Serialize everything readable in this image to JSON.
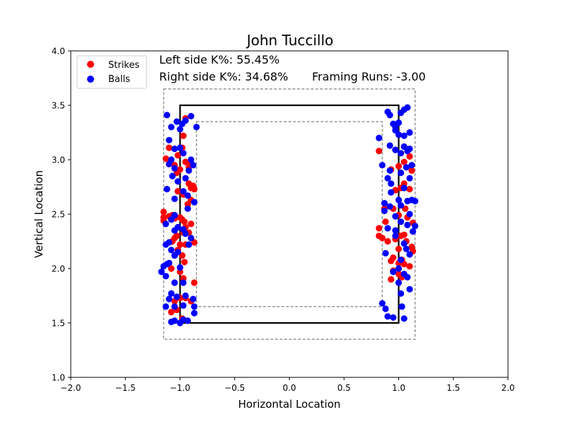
{
  "chart_data": {
    "type": "scatter",
    "title": "John Tuccillo",
    "xlabel": "Horizontal Location",
    "ylabel": "Vertical Location",
    "xlim": [
      -2.0,
      2.0
    ],
    "ylim": [
      1.0,
      4.0
    ],
    "xticks": [
      "−2.0",
      "−1.5",
      "−1.0",
      "−0.5",
      "0.0",
      "0.5",
      "1.0",
      "1.5",
      "2.0"
    ],
    "yticks": [
      "1.0",
      "1.5",
      "2.0",
      "2.5",
      "3.0",
      "3.5",
      "4.0"
    ],
    "xtick_values": [
      -2.0,
      -1.5,
      -1.0,
      -0.5,
      0.0,
      0.5,
      1.0,
      1.5,
      2.0
    ],
    "ytick_values": [
      1.0,
      1.5,
      2.0,
      2.5,
      3.0,
      3.5,
      4.0
    ],
    "annotations": {
      "left_k": "Left side K%: 55.45%",
      "right_k": "Right side K%: 34.68%",
      "framing": "Framing Runs: -3.00"
    },
    "legend": {
      "placement": "top-left",
      "entries": [
        {
          "label": "Strikes",
          "color": "#ff0000"
        },
        {
          "label": "Balls",
          "color": "#0000ff"
        }
      ]
    },
    "zones": {
      "strike_zone": {
        "x": [
          -1.0,
          1.0
        ],
        "y": [
          1.5,
          3.5
        ],
        "color": "#000000",
        "style": "solid"
      },
      "outer_zone": {
        "x": [
          -1.15,
          1.15
        ],
        "y": [
          1.35,
          3.65
        ],
        "color": "#808080",
        "style": "dashed"
      },
      "inner_zone": {
        "x": [
          -0.85,
          0.85
        ],
        "y": [
          1.65,
          3.35
        ],
        "color": "#808080",
        "style": "dashed"
      }
    },
    "grid": false,
    "series": [
      {
        "name": "Strikes",
        "color": "#ff0000",
        "points": [
          [
            -1.15,
            2.52
          ],
          [
            -1.15,
            2.47
          ],
          [
            -1.15,
            2.44
          ],
          [
            -1.1,
            2.48
          ],
          [
            -1.13,
            3.01
          ],
          [
            -1.1,
            3.11
          ],
          [
            -1.05,
            2.95
          ],
          [
            -1.03,
            2.88
          ],
          [
            -1.0,
            2.91
          ],
          [
            -0.98,
            3.11
          ],
          [
            -0.97,
            3.22
          ],
          [
            -0.95,
            3.38
          ],
          [
            -1.02,
            2.71
          ],
          [
            -0.97,
            2.68
          ],
          [
            -0.92,
            2.78
          ],
          [
            -0.9,
            2.74
          ],
          [
            -0.88,
            2.76
          ],
          [
            -0.9,
            2.63
          ],
          [
            -1.07,
            2.49
          ],
          [
            -1.05,
            2.46
          ],
          [
            -1.0,
            2.47
          ],
          [
            -0.98,
            2.45
          ],
          [
            -0.96,
            2.43
          ],
          [
            -0.9,
            2.41
          ],
          [
            -0.95,
            2.38
          ],
          [
            -0.92,
            2.33
          ],
          [
            -0.97,
            2.33
          ],
          [
            -1.03,
            2.3
          ],
          [
            -1.05,
            2.28
          ],
          [
            -1.07,
            2.25
          ],
          [
            -1.0,
            2.22
          ],
          [
            -0.95,
            2.22
          ],
          [
            -0.87,
            2.24
          ],
          [
            -1.02,
            2.17
          ],
          [
            -0.98,
            2.12
          ],
          [
            -0.96,
            2.06
          ],
          [
            -1.08,
            2.0
          ],
          [
            -1.0,
            1.97
          ],
          [
            -0.97,
            1.91
          ],
          [
            -0.87,
            1.87
          ],
          [
            -1.05,
            1.7
          ],
          [
            -1.0,
            1.73
          ],
          [
            -0.95,
            1.73
          ],
          [
            -0.9,
            1.7
          ],
          [
            -1.08,
            1.6
          ],
          [
            -1.03,
            1.62
          ],
          [
            -0.98,
            1.54
          ],
          [
            -0.93,
            1.52
          ],
          [
            -0.92,
            2.93
          ],
          [
            -0.95,
            2.98
          ],
          [
            -0.9,
            2.96
          ],
          [
            -1.02,
            3.04
          ],
          [
            -0.87,
            2.73
          ],
          [
            -0.93,
            2.59
          ],
          [
            0.82,
            3.08
          ],
          [
            0.97,
            3.09
          ],
          [
            1.05,
            3.12
          ],
          [
            1.1,
            3.03
          ],
          [
            1.12,
            2.9
          ],
          [
            1.05,
            2.98
          ],
          [
            1.0,
            2.94
          ],
          [
            0.93,
            2.91
          ],
          [
            0.97,
            2.72
          ],
          [
            1.02,
            2.74
          ],
          [
            1.05,
            2.78
          ],
          [
            1.1,
            2.73
          ],
          [
            0.87,
            2.55
          ],
          [
            0.95,
            2.55
          ],
          [
            1.0,
            2.49
          ],
          [
            1.06,
            2.55
          ],
          [
            1.08,
            2.47
          ],
          [
            1.13,
            2.42
          ],
          [
            0.88,
            2.43
          ],
          [
            0.82,
            2.37
          ],
          [
            0.82,
            2.3
          ],
          [
            0.85,
            2.28
          ],
          [
            0.9,
            2.25
          ],
          [
            0.97,
            2.27
          ],
          [
            1.02,
            2.3
          ],
          [
            1.05,
            2.31
          ],
          [
            1.12,
            2.2
          ],
          [
            1.13,
            2.16
          ],
          [
            0.93,
            2.07
          ],
          [
            1.0,
            2.05
          ],
          [
            1.05,
            2.04
          ],
          [
            1.1,
            2.02
          ],
          [
            0.95,
            1.98
          ],
          [
            1.0,
            1.95
          ],
          [
            1.03,
            1.92
          ],
          [
            0.93,
            1.9
          ],
          [
            1.0,
            2.18
          ],
          [
            1.07,
            2.25
          ],
          [
            0.95,
            2.1
          ],
          [
            1.03,
            2.08
          ]
        ]
      },
      {
        "name": "Balls",
        "color": "#0000ff",
        "points": [
          [
            -1.12,
            3.41
          ],
          [
            -1.08,
            3.3
          ],
          [
            -1.03,
            3.35
          ],
          [
            -1.0,
            3.28
          ],
          [
            -0.98,
            3.33
          ],
          [
            -0.95,
            3.36
          ],
          [
            -0.9,
            3.4
          ],
          [
            -0.85,
            3.3
          ],
          [
            -1.1,
            3.18
          ],
          [
            -1.05,
            3.1
          ],
          [
            -1.0,
            3.11
          ],
          [
            -1.08,
            3.0
          ],
          [
            -1.1,
            2.96
          ],
          [
            -1.05,
            2.92
          ],
          [
            -0.97,
            3.06
          ],
          [
            -0.9,
            3.0
          ],
          [
            -0.88,
            2.95
          ],
          [
            -0.92,
            2.9
          ],
          [
            -1.07,
            2.85
          ],
          [
            -0.95,
            2.83
          ],
          [
            -1.02,
            2.8
          ],
          [
            -1.12,
            2.73
          ],
          [
            -0.97,
            2.71
          ],
          [
            -0.93,
            2.67
          ],
          [
            -1.05,
            2.64
          ],
          [
            -0.87,
            2.61
          ],
          [
            -0.93,
            2.55
          ],
          [
            -1.05,
            2.49
          ],
          [
            -1.08,
            2.45
          ],
          [
            -1.13,
            2.41
          ],
          [
            -1.02,
            2.38
          ],
          [
            -0.97,
            2.36
          ],
          [
            -1.05,
            2.35
          ],
          [
            -0.95,
            2.32
          ],
          [
            -1.1,
            2.24
          ],
          [
            -1.13,
            2.22
          ],
          [
            -0.92,
            2.22
          ],
          [
            -1.08,
            2.17
          ],
          [
            -1.05,
            2.12
          ],
          [
            -1.02,
            2.15
          ],
          [
            -1.1,
            2.05
          ],
          [
            -1.12,
            2.04
          ],
          [
            -1.15,
            2.02
          ],
          [
            -1.17,
            1.97
          ],
          [
            -1.13,
            1.93
          ],
          [
            -1.0,
            2.01
          ],
          [
            -1.05,
            1.87
          ],
          [
            -0.97,
            1.87
          ],
          [
            -1.08,
            1.77
          ],
          [
            -1.03,
            1.74
          ],
          [
            -0.95,
            1.75
          ],
          [
            -1.1,
            1.72
          ],
          [
            -1.13,
            1.65
          ],
          [
            -1.05,
            1.65
          ],
          [
            -0.97,
            1.66
          ],
          [
            -0.88,
            1.72
          ],
          [
            -0.87,
            1.65
          ],
          [
            -0.87,
            1.59
          ],
          [
            -1.08,
            1.51
          ],
          [
            -1.05,
            1.52
          ],
          [
            -1.0,
            1.5
          ],
          [
            -0.97,
            1.53
          ],
          [
            -0.93,
            1.52
          ],
          [
            -0.9,
            2.28
          ],
          [
            0.82,
            3.2
          ],
          [
            0.9,
            3.44
          ],
          [
            0.92,
            3.41
          ],
          [
            0.95,
            3.33
          ],
          [
            0.97,
            3.3
          ],
          [
            1.0,
            3.34
          ],
          [
            1.02,
            3.43
          ],
          [
            1.05,
            3.46
          ],
          [
            1.08,
            3.48
          ],
          [
            0.97,
            3.27
          ],
          [
            1.0,
            3.23
          ],
          [
            1.05,
            3.22
          ],
          [
            0.92,
            3.13
          ],
          [
            0.97,
            3.09
          ],
          [
            1.02,
            3.06
          ],
          [
            1.08,
            3.08
          ],
          [
            1.1,
            3.1
          ],
          [
            1.05,
            3.12
          ],
          [
            0.85,
            2.95
          ],
          [
            0.92,
            2.9
          ],
          [
            1.02,
            2.88
          ],
          [
            1.07,
            2.93
          ],
          [
            1.1,
            2.83
          ],
          [
            0.9,
            2.83
          ],
          [
            0.93,
            2.78
          ],
          [
            1.05,
            2.74
          ],
          [
            1.0,
            2.63
          ],
          [
            0.87,
            2.6
          ],
          [
            0.92,
            2.57
          ],
          [
            1.02,
            2.58
          ],
          [
            1.08,
            2.62
          ],
          [
            1.12,
            2.63
          ],
          [
            1.15,
            2.62
          ],
          [
            0.97,
            2.48
          ],
          [
            0.87,
            2.53
          ],
          [
            1.02,
            2.43
          ],
          [
            1.08,
            2.4
          ],
          [
            1.13,
            2.34
          ],
          [
            1.15,
            2.39
          ],
          [
            0.9,
            2.37
          ],
          [
            0.97,
            2.35
          ],
          [
            1.05,
            2.23
          ],
          [
            1.07,
            2.18
          ],
          [
            1.1,
            2.13
          ],
          [
            1.02,
            2.08
          ],
          [
            0.88,
            2.14
          ],
          [
            0.95,
            1.97
          ],
          [
            1.0,
            2.0
          ],
          [
            1.05,
            1.95
          ],
          [
            1.08,
            1.92
          ],
          [
            1.0,
            1.87
          ],
          [
            1.1,
            1.81
          ],
          [
            1.02,
            1.77
          ],
          [
            0.85,
            1.68
          ],
          [
            0.88,
            1.63
          ],
          [
            1.03,
            1.65
          ],
          [
            0.9,
            1.56
          ],
          [
            0.95,
            1.55
          ],
          [
            1.05,
            1.54
          ],
          [
            0.97,
            2.3
          ],
          [
            1.1,
            2.5
          ],
          [
            0.93,
            2.7
          ],
          [
            1.12,
            2.95
          ],
          [
            1.1,
            3.25
          ]
        ]
      }
    ]
  }
}
